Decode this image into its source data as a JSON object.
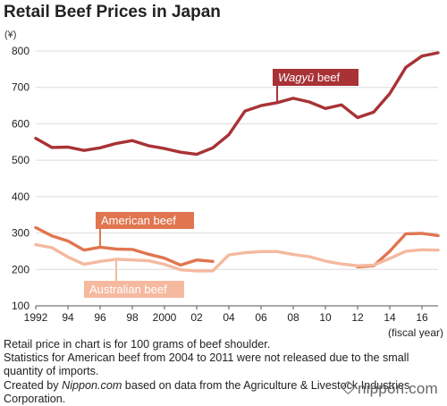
{
  "chart_data": {
    "type": "line",
    "title": "Retail Beef Prices in Japan",
    "y_unit": "(¥)",
    "x_unit_label": "(fiscal year)",
    "xlim": [
      1992,
      2017
    ],
    "ylim": [
      100,
      800
    ],
    "y_ticks": [
      100,
      200,
      300,
      400,
      500,
      600,
      700,
      800
    ],
    "x_ticks": [
      1992,
      1994,
      1996,
      1998,
      2000,
      2002,
      2004,
      2006,
      2008,
      2010,
      2012,
      2014,
      2016
    ],
    "x_tick_labels": [
      "1992",
      "94",
      "96",
      "98",
      "2000",
      "02",
      "04",
      "06",
      "08",
      "10",
      "12",
      "14",
      "16"
    ],
    "grid": true,
    "series": [
      {
        "name": "Wagyū beef",
        "name_main": "Wagyū",
        "name_suffix": " beef",
        "color": "#a83236",
        "x": [
          1992,
          1993,
          1994,
          1995,
          1996,
          1997,
          1998,
          1999,
          2000,
          2001,
          2002,
          2003,
          2004,
          2005,
          2006,
          2007,
          2008,
          2009,
          2010,
          2011,
          2012,
          2013,
          2014,
          2015,
          2016,
          2017
        ],
        "y": [
          560,
          535,
          536,
          527,
          534,
          546,
          554,
          540,
          532,
          522,
          516,
          534,
          570,
          635,
          650,
          658,
          670,
          660,
          642,
          652,
          617,
          632,
          683,
          755,
          786,
          795
        ]
      },
      {
        "name": "American beef",
        "color": "#e0754f",
        "segments": [
          {
            "x": [
              1992,
              1993,
              1994,
              1995,
              1996,
              1997,
              1998,
              1999,
              2000,
              2001,
              2002,
              2003
            ],
            "y": [
              315,
              292,
              278,
              253,
              261,
              256,
              255,
              242,
              231,
              212,
              226,
              222
            ]
          },
          {
            "x": [
              2012,
              2013,
              2014,
              2015,
              2016,
              2017
            ],
            "y": [
              207,
              210,
              250,
              298,
              299,
              293
            ]
          }
        ]
      },
      {
        "name": "Australian beef",
        "color": "#f5b9a0",
        "x": [
          1992,
          1993,
          1994,
          1995,
          1996,
          1997,
          1998,
          1999,
          2000,
          2001,
          2002,
          2003,
          2004,
          2005,
          2006,
          2007,
          2008,
          2009,
          2010,
          2011,
          2012,
          2013,
          2014,
          2015,
          2016,
          2017
        ],
        "y": [
          268,
          260,
          234,
          214,
          222,
          228,
          226,
          224,
          214,
          199,
          196,
          196,
          240,
          246,
          249,
          249,
          241,
          235,
          223,
          215,
          210,
          212,
          230,
          250,
          254,
          253
        ]
      }
    ]
  },
  "notes": [
    "Retail price in chart is for 100 grams of beef shoulder.",
    "Statistics for American beef from 2004 to 2011 were not released due to the small quantity of imports."
  ],
  "credit": {
    "prefix": "Created by ",
    "site": "Nippon.com",
    "suffix": " based on data from the Agriculture & Livestock Industries Corporation."
  },
  "logo_text": "nippon.com"
}
